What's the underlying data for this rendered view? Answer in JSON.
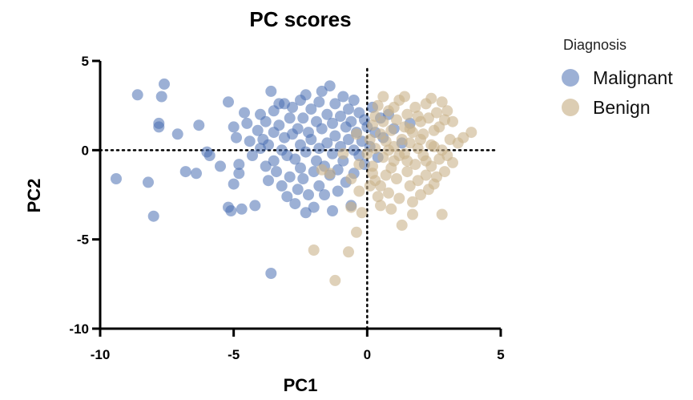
{
  "chart_data": {
    "type": "scatter",
    "title": "PC scores",
    "xlabel": "PC1",
    "ylabel": "PC2",
    "xlim": [
      -10,
      5
    ],
    "ylim": [
      -10,
      5
    ],
    "xticks": [
      -10,
      -5,
      0,
      5
    ],
    "yticks": [
      -10,
      -5,
      0,
      5
    ],
    "xtick_labels": [
      "-10",
      "-5",
      "0",
      "5"
    ],
    "ytick_labels": [
      "-10",
      "-5",
      "0",
      "5"
    ],
    "reference_lines": {
      "x": 0,
      "y": 0,
      "style": "dotted"
    },
    "grid": false,
    "legend": {
      "title": "Diagnosis",
      "placement": "right"
    },
    "series": [
      {
        "name": "Malignant",
        "color": "#4a6fb3",
        "points": [
          [
            -9.4,
            -1.6
          ],
          [
            -8.6,
            3.1
          ],
          [
            -8.2,
            -1.8
          ],
          [
            -8.0,
            -3.7
          ],
          [
            -7.8,
            1.5
          ],
          [
            -7.8,
            1.3
          ],
          [
            -7.7,
            3.0
          ],
          [
            -7.6,
            3.7
          ],
          [
            -7.1,
            0.9
          ],
          [
            -6.8,
            -1.2
          ],
          [
            -6.4,
            -1.3
          ],
          [
            -6.3,
            1.4
          ],
          [
            -6.0,
            -0.1
          ],
          [
            -5.9,
            -0.3
          ],
          [
            -5.5,
            -0.9
          ],
          [
            -5.2,
            2.7
          ],
          [
            -5.2,
            -3.2
          ],
          [
            -5.1,
            -3.4
          ],
          [
            -5.0,
            1.3
          ],
          [
            -5.0,
            -1.9
          ],
          [
            -4.9,
            0.7
          ],
          [
            -4.8,
            -0.8
          ],
          [
            -4.8,
            -1.3
          ],
          [
            -4.7,
            -3.3
          ],
          [
            -4.6,
            2.1
          ],
          [
            -4.5,
            1.5
          ],
          [
            -4.4,
            0.5
          ],
          [
            -4.3,
            -0.3
          ],
          [
            -4.2,
            -3.1
          ],
          [
            -4.1,
            1.1
          ],
          [
            -4.0,
            2.0
          ],
          [
            -4.0,
            0.1
          ],
          [
            -3.9,
            0.6
          ],
          [
            -3.8,
            1.6
          ],
          [
            -3.8,
            -0.9
          ],
          [
            -3.7,
            0.3
          ],
          [
            -3.7,
            -1.7
          ],
          [
            -3.6,
            3.3
          ],
          [
            -3.6,
            -6.9
          ],
          [
            -3.5,
            2.2
          ],
          [
            -3.5,
            1.0
          ],
          [
            -3.5,
            -0.6
          ],
          [
            -3.4,
            -1.2
          ],
          [
            -3.3,
            2.6
          ],
          [
            -3.3,
            1.4
          ],
          [
            -3.2,
            0.0
          ],
          [
            -3.2,
            -2.0
          ],
          [
            -3.1,
            2.6
          ],
          [
            -3.1,
            0.7
          ],
          [
            -3.0,
            -0.3
          ],
          [
            -3.0,
            -2.6
          ],
          [
            -2.9,
            1.8
          ],
          [
            -2.9,
            -1.5
          ],
          [
            -2.8,
            2.4
          ],
          [
            -2.8,
            0.9
          ],
          [
            -2.7,
            -0.5
          ],
          [
            -2.7,
            -3.0
          ],
          [
            -2.6,
            1.2
          ],
          [
            -2.6,
            -2.2
          ],
          [
            -2.5,
            2.8
          ],
          [
            -2.5,
            0.3
          ],
          [
            -2.5,
            -1.0
          ],
          [
            -2.4,
            1.8
          ],
          [
            -2.4,
            -1.6
          ],
          [
            -2.3,
            3.1
          ],
          [
            -2.3,
            -0.1
          ],
          [
            -2.3,
            -3.5
          ],
          [
            -2.2,
            1.0
          ],
          [
            -2.2,
            -2.5
          ],
          [
            -2.1,
            2.3
          ],
          [
            -2.1,
            0.6
          ],
          [
            -2.0,
            -1.2
          ],
          [
            -2.0,
            -3.2
          ],
          [
            -1.9,
            1.6
          ],
          [
            -1.9,
            -0.6
          ],
          [
            -1.8,
            2.7
          ],
          [
            -1.8,
            0.1
          ],
          [
            -1.8,
            -2.0
          ],
          [
            -1.7,
            3.3
          ],
          [
            -1.7,
            1.2
          ],
          [
            -1.6,
            -0.9
          ],
          [
            -1.6,
            -2.5
          ],
          [
            -1.5,
            2.0
          ],
          [
            -1.5,
            0.4
          ],
          [
            -1.4,
            -1.4
          ],
          [
            -1.4,
            3.6
          ],
          [
            -1.3,
            1.5
          ],
          [
            -1.3,
            -0.2
          ],
          [
            -1.3,
            -3.4
          ],
          [
            -1.2,
            2.6
          ],
          [
            -1.2,
            0.8
          ],
          [
            -1.1,
            -1.1
          ],
          [
            -1.1,
            -2.3
          ],
          [
            -1.0,
            1.9
          ],
          [
            -1.0,
            0.2
          ],
          [
            -0.9,
            3.0
          ],
          [
            -0.9,
            -0.6
          ],
          [
            -0.8,
            1.3
          ],
          [
            -0.8,
            -1.8
          ],
          [
            -0.7,
            2.3
          ],
          [
            -0.7,
            0.6
          ],
          [
            -0.6,
            -3.1
          ],
          [
            -0.6,
            1.6
          ],
          [
            -0.5,
            2.8
          ],
          [
            -0.5,
            0.0
          ],
          [
            -0.5,
            -1.3
          ],
          [
            -0.4,
            1.0
          ],
          [
            -0.3,
            2.1
          ],
          [
            -0.3,
            -0.3
          ],
          [
            -0.2,
            0.5
          ],
          [
            -0.1,
            1.7
          ],
          [
            -0.1,
            -0.8
          ],
          [
            0.0,
            1.3
          ],
          [
            0.1,
            0.2
          ],
          [
            0.2,
            2.4
          ],
          [
            0.3,
            1.0
          ],
          [
            0.4,
            -0.4
          ],
          [
            0.5,
            1.8
          ],
          [
            0.6,
            0.7
          ],
          [
            0.8,
            2.0
          ],
          [
            1.0,
            1.2
          ],
          [
            1.3,
            0.4
          ],
          [
            1.6,
            1.5
          ]
        ]
      },
      {
        "name": "Benign",
        "color": "#c9b28a",
        "points": [
          [
            -2.0,
            -5.6
          ],
          [
            -1.2,
            -7.3
          ],
          [
            -0.7,
            -5.7
          ],
          [
            -0.4,
            -4.6
          ],
          [
            -0.6,
            -3.2
          ],
          [
            -1.4,
            -1.3
          ],
          [
            -1.7,
            -1.1
          ],
          [
            -0.6,
            -1.6
          ],
          [
            -0.3,
            -2.3
          ],
          [
            -0.9,
            -0.2
          ],
          [
            -0.2,
            -3.5
          ],
          [
            0.1,
            -2.0
          ],
          [
            0.2,
            -0.9
          ],
          [
            0.3,
            -1.7
          ],
          [
            0.4,
            -2.6
          ],
          [
            0.5,
            -3.1
          ],
          [
            0.6,
            -0.4
          ],
          [
            0.7,
            -1.4
          ],
          [
            0.8,
            -2.4
          ],
          [
            0.9,
            -3.3
          ],
          [
            1.0,
            -0.6
          ],
          [
            1.1,
            -1.6
          ],
          [
            1.2,
            -2.7
          ],
          [
            1.3,
            -4.2
          ],
          [
            1.4,
            -0.2
          ],
          [
            1.5,
            -1.2
          ],
          [
            1.6,
            -2.0
          ],
          [
            1.7,
            -3.6
          ],
          [
            1.8,
            -0.8
          ],
          [
            1.9,
            -1.7
          ],
          [
            2.0,
            -2.5
          ],
          [
            2.1,
            -0.3
          ],
          [
            2.2,
            -1.4
          ],
          [
            2.3,
            -2.2
          ],
          [
            2.4,
            -0.9
          ],
          [
            2.5,
            -1.9
          ],
          [
            2.7,
            -0.5
          ],
          [
            2.8,
            -3.6
          ],
          [
            2.9,
            -1.2
          ],
          [
            3.0,
            -0.3
          ],
          [
            3.2,
            -0.7
          ],
          [
            3.4,
            0.4
          ],
          [
            3.6,
            0.7
          ],
          [
            3.9,
            1.0
          ],
          [
            3.2,
            1.6
          ],
          [
            3.0,
            2.2
          ],
          [
            2.8,
            2.7
          ],
          [
            2.6,
            2.1
          ],
          [
            2.5,
            1.1
          ],
          [
            2.4,
            0.3
          ],
          [
            2.3,
            1.8
          ],
          [
            2.2,
            2.6
          ],
          [
            2.1,
            0.9
          ],
          [
            2.0,
            1.6
          ],
          [
            1.9,
            0.1
          ],
          [
            1.8,
            2.4
          ],
          [
            1.7,
            1.0
          ],
          [
            1.6,
            0.4
          ],
          [
            1.5,
            2.0
          ],
          [
            1.4,
            1.3
          ],
          [
            1.3,
            0.6
          ],
          [
            1.2,
            2.8
          ],
          [
            1.1,
            1.7
          ],
          [
            1.0,
            0.2
          ],
          [
            0.9,
            1.1
          ],
          [
            0.8,
            2.2
          ],
          [
            0.7,
            0.5
          ],
          [
            0.6,
            1.6
          ],
          [
            0.5,
            0.9
          ],
          [
            0.4,
            2.5
          ],
          [
            0.3,
            0.1
          ],
          [
            0.2,
            1.4
          ],
          [
            0.1,
            0.6
          ],
          [
            0.0,
            -0.2
          ],
          [
            0.6,
            3.0
          ],
          [
            1.4,
            3.0
          ],
          [
            2.4,
            2.9
          ],
          [
            -0.4,
            0.9
          ],
          [
            -0.3,
            -0.8
          ],
          [
            2.8,
            0.0
          ],
          [
            3.1,
            0.6
          ],
          [
            2.6,
            -1.5
          ],
          [
            1.2,
            -0.3
          ],
          [
            0.9,
            -1.0
          ],
          [
            1.7,
            -2.9
          ],
          [
            0.2,
            -1.3
          ],
          [
            2.0,
            0.6
          ],
          [
            2.7,
            1.3
          ],
          [
            1.5,
            -0.6
          ],
          [
            0.3,
            1.9
          ],
          [
            1.9,
            1.9
          ],
          [
            2.9,
            1.7
          ],
          [
            0.8,
            0.0
          ],
          [
            1.6,
            1.2
          ],
          [
            2.2,
            -0.6
          ],
          [
            0.5,
            -2.0
          ],
          [
            1.0,
            2.4
          ],
          [
            2.5,
            0.2
          ]
        ]
      }
    ]
  }
}
